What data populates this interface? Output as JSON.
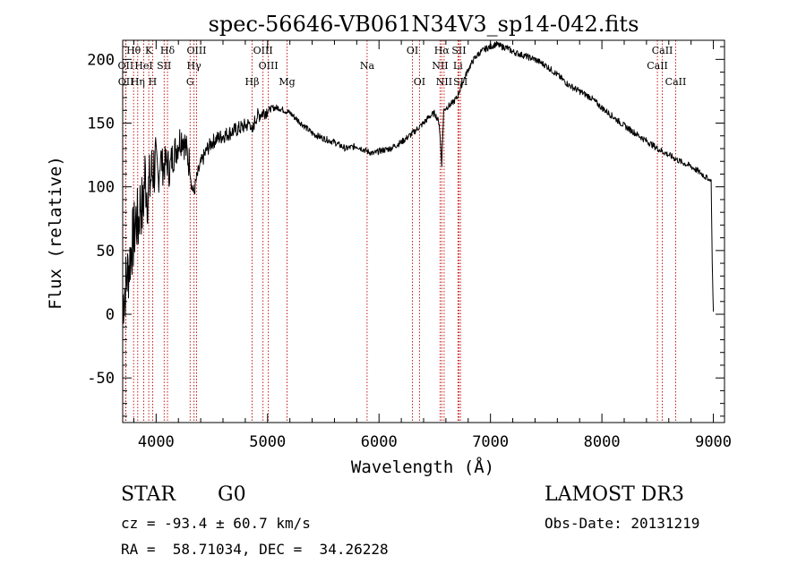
{
  "chart_data": {
    "type": "line",
    "title": "spec-56646-VB061N34V3_sp14-042.fits",
    "xlabel": "Wavelength (Å)",
    "ylabel": "Flux (relative)",
    "xlim": [
      3700,
      9100
    ],
    "ylim": [
      -85,
      215
    ],
    "x_ticks": [
      4000,
      5000,
      6000,
      7000,
      8000,
      9000
    ],
    "y_ticks": [
      -50,
      0,
      50,
      100,
      150,
      200
    ],
    "spectrum": {
      "name": "flux",
      "x": [
        3700,
        3720,
        3740,
        3760,
        3780,
        3800,
        3820,
        3840,
        3860,
        3880,
        3900,
        3920,
        3940,
        3960,
        3980,
        4000,
        4020,
        4040,
        4060,
        4080,
        4100,
        4120,
        4140,
        4160,
        4180,
        4200,
        4220,
        4240,
        4260,
        4280,
        4300,
        4320,
        4340,
        4360,
        4380,
        4400,
        4420,
        4440,
        4460,
        4480,
        4500,
        4550,
        4600,
        4650,
        4700,
        4750,
        4800,
        4850,
        4861,
        4880,
        4900,
        4950,
        5000,
        5050,
        5100,
        5150,
        5200,
        5300,
        5400,
        5500,
        5600,
        5700,
        5800,
        5890,
        5950,
        6000,
        6100,
        6200,
        6300,
        6400,
        6450,
        6500,
        6540,
        6563,
        6580,
        6600,
        6650,
        6700,
        6750,
        6800,
        6850,
        6900,
        6950,
        7000,
        7050,
        7100,
        7150,
        7200,
        7300,
        7400,
        7500,
        7600,
        7700,
        7800,
        7900,
        8000,
        8100,
        8200,
        8300,
        8400,
        8500,
        8600,
        8700,
        8800,
        8850,
        8900,
        8950,
        8980,
        8990,
        9000
      ],
      "y": [
        10,
        20,
        30,
        40,
        55,
        60,
        75,
        70,
        90,
        80,
        110,
        95,
        100,
        110,
        115,
        120,
        105,
        125,
        115,
        118,
        120,
        112,
        122,
        126,
        130,
        135,
        138,
        140,
        132,
        125,
        118,
        100,
        95,
        105,
        112,
        118,
        122,
        126,
        130,
        132,
        135,
        138,
        140,
        142,
        144,
        146,
        148,
        150,
        140,
        150,
        155,
        158,
        160,
        162,
        162,
        160,
        158,
        150,
        142,
        138,
        135,
        130,
        132,
        128,
        126,
        128,
        130,
        135,
        142,
        150,
        155,
        158,
        150,
        118,
        160,
        162,
        165,
        170,
        182,
        192,
        200,
        205,
        208,
        210,
        212,
        210,
        209,
        206,
        203,
        200,
        195,
        188,
        180,
        175,
        170,
        162,
        155,
        148,
        142,
        136,
        130,
        125,
        120,
        116,
        113,
        110,
        106,
        105,
        40,
        2
      ]
    },
    "lines": [
      {
        "label": "Hθ",
        "wl": 3798,
        "row": 0
      },
      {
        "label": "K",
        "wl": 3934,
        "row": 0
      },
      {
        "label": "Hδ",
        "wl": 4102,
        "row": 0
      },
      {
        "label": "OIII",
        "wl": 4363,
        "row": 0
      },
      {
        "label": "OIII",
        "wl": 4959,
        "row": 0
      },
      {
        "label": "OI",
        "wl": 6300,
        "row": 0
      },
      {
        "label": "Hα",
        "wl": 6563,
        "row": 0
      },
      {
        "label": "SII",
        "wl": 6717,
        "row": 0
      },
      {
        "label": "CaII",
        "wl": 8542,
        "row": 0
      },
      {
        "label": "OII",
        "wl": 3727,
        "row": 1
      },
      {
        "label": "HeI",
        "wl": 3889,
        "row": 1
      },
      {
        "label": "SII",
        "wl": 4072,
        "row": 1
      },
      {
        "label": "Hγ",
        "wl": 4340,
        "row": 1
      },
      {
        "label": "OIII",
        "wl": 5007,
        "row": 1
      },
      {
        "label": "Na",
        "wl": 5893,
        "row": 1
      },
      {
        "label": "NII",
        "wl": 6548,
        "row": 1
      },
      {
        "label": "Li",
        "wl": 6708,
        "row": 1
      },
      {
        "label": "CaII",
        "wl": 8498,
        "row": 1
      },
      {
        "label": "OII",
        "wl": 3729,
        "row": 2
      },
      {
        "label": "Hη",
        "wl": 3835,
        "row": 2
      },
      {
        "label": "H",
        "wl": 3969,
        "row": 2
      },
      {
        "label": "G",
        "wl": 4305,
        "row": 2
      },
      {
        "label": "Hβ",
        "wl": 4861,
        "row": 2
      },
      {
        "label": "Mg",
        "wl": 5175,
        "row": 2
      },
      {
        "label": "OI",
        "wl": 6363,
        "row": 2
      },
      {
        "label": "NII",
        "wl": 6584,
        "row": 2
      },
      {
        "label": "SII",
        "wl": 6731,
        "row": 2
      },
      {
        "label": "CaII",
        "wl": 8662,
        "row": 2
      }
    ]
  },
  "info": {
    "object_class": "STAR",
    "subclass": "G0",
    "survey": "LAMOST DR3",
    "redshift": "cz = -93.4 ± 60.7 km/s",
    "obs_date": "Obs-Date: 20131219",
    "coords": "RA =  58.71034, DEC =  34.26228"
  }
}
